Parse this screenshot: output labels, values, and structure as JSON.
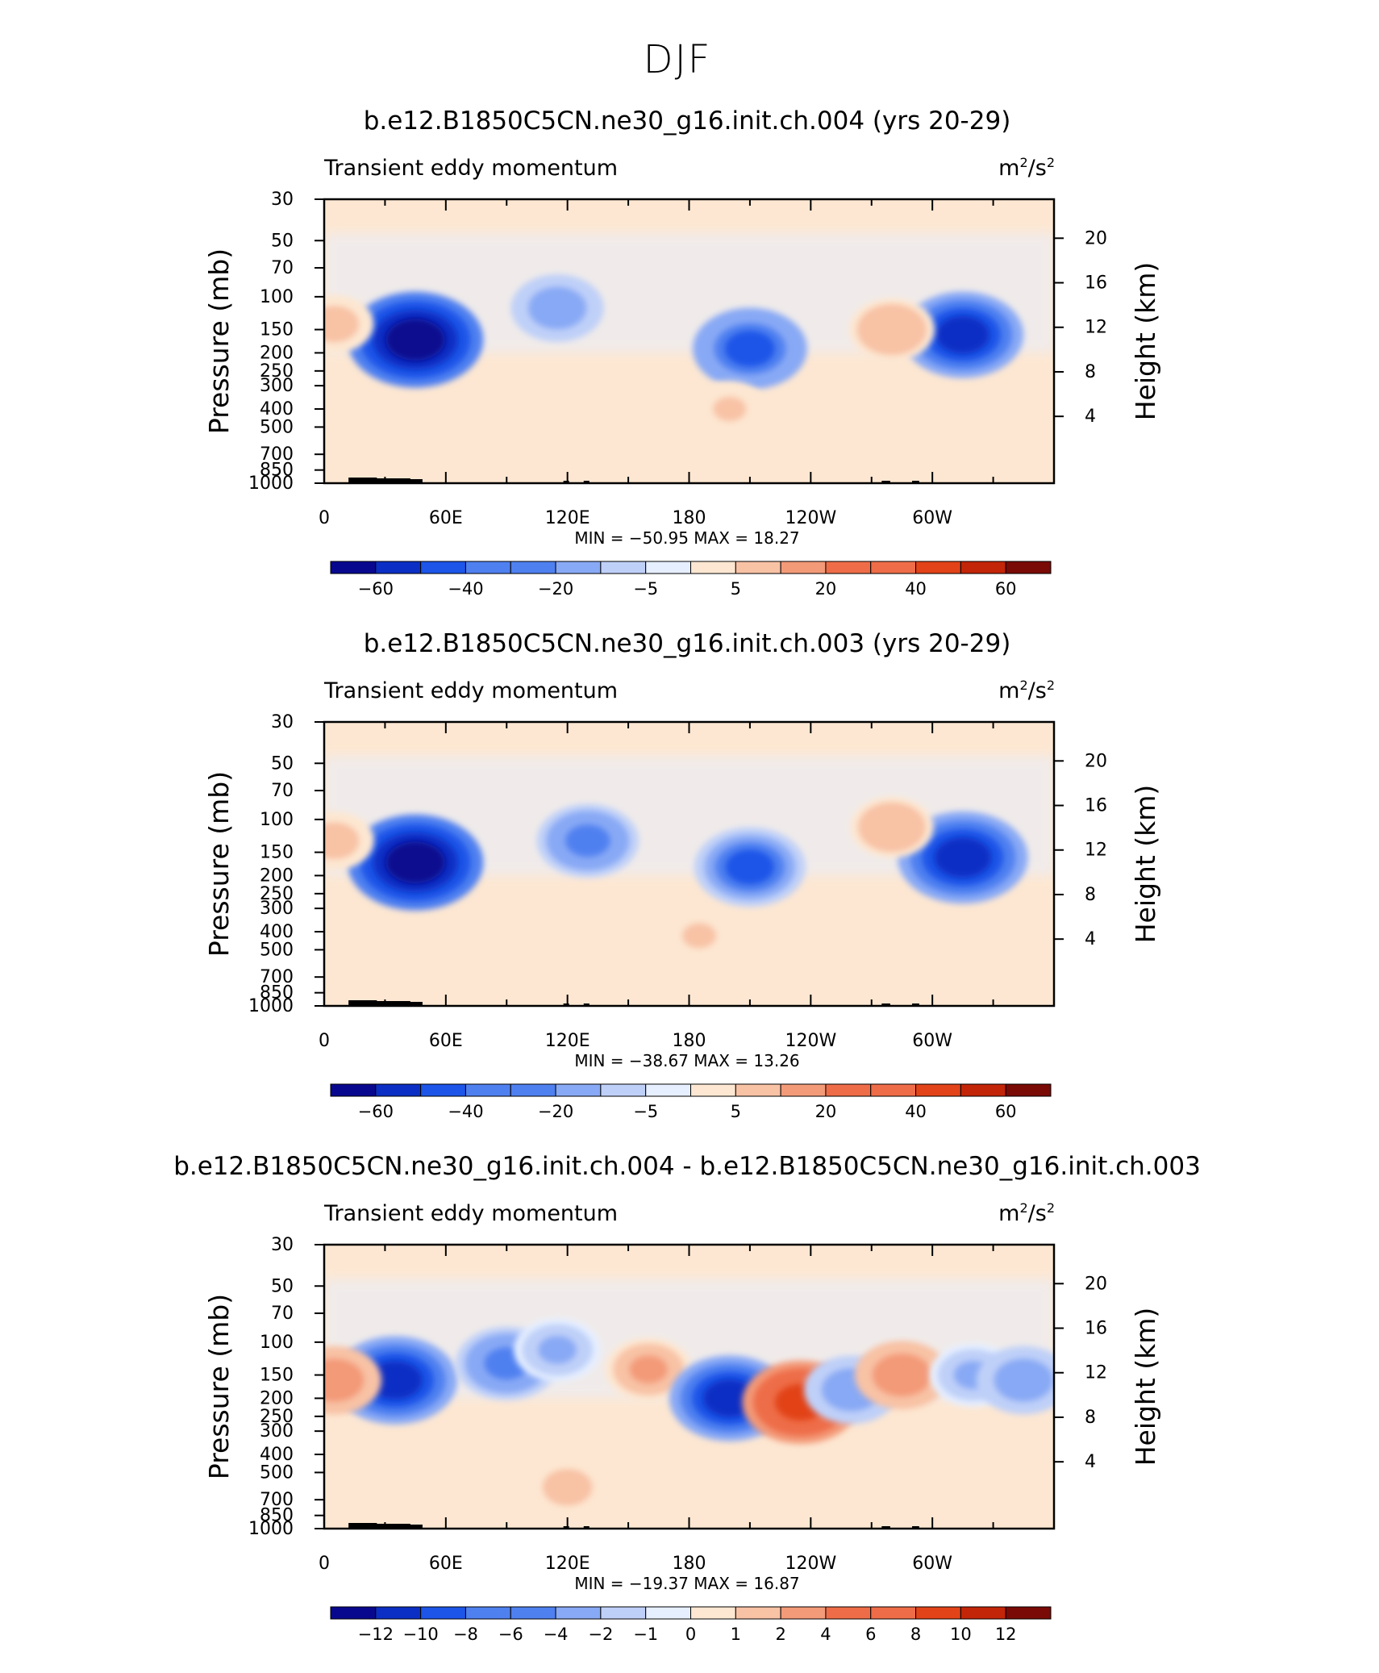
{
  "figure_title": "DJF",
  "colors": {
    "standard_palette": [
      "#08088f",
      "#0b2fc4",
      "#1c55e8",
      "#4f80f0",
      "#88a9f5",
      "#bfd0f8",
      "#e6efff",
      "#fde7d2",
      "#f8c2a5",
      "#f39a78",
      "#ee6d48",
      "#e24318",
      "#c32508",
      "#7a0a05"
    ],
    "frame": "#000000"
  },
  "chart_data": [
    {
      "type": "heatmap",
      "title": "b.e12.B1850C5CN.ne30_g16.init.ch.004 (yrs 20-29)",
      "subtitle_left": "Transient eddy momentum",
      "units_base": "m",
      "units_exp1": "2",
      "units_mid": "/s",
      "units_exp2": "2",
      "ylabel": "Pressure  (mb)",
      "ylabel_right": "Height  (km)",
      "y_ticks": [
        "30",
        "50",
        "70",
        "100",
        "150",
        "200",
        "250",
        "300",
        "400",
        "500",
        "700",
        "850",
        "1000"
      ],
      "y_tick_values": [
        30,
        50,
        70,
        100,
        150,
        200,
        250,
        300,
        400,
        500,
        700,
        850,
        1000
      ],
      "y_right_ticks": [
        "20",
        "16",
        "12",
        "8",
        "4"
      ],
      "y_right_values": [
        20,
        16,
        12,
        8,
        4
      ],
      "x_ticks": [
        "0",
        "60E",
        "120E",
        "180",
        "120W",
        "60W"
      ],
      "x_tick_values": [
        0,
        60,
        120,
        180,
        240,
        300
      ],
      "xlim": [
        0,
        360
      ],
      "ylim": [
        1000,
        30
      ],
      "min_max_text": "MIN = −50.95   MAX =   18.27",
      "min": -50.95,
      "max": 18.27,
      "colorbar_labels": [
        "−60",
        "−40",
        "−20",
        "−5",
        "5",
        "20",
        "40",
        "60"
      ],
      "features": [
        {
          "lon": 45,
          "p": 170,
          "value": -50
        },
        {
          "lon": 115,
          "p": 115,
          "value": -20
        },
        {
          "lon": 210,
          "p": 190,
          "value": -35
        },
        {
          "lon": 315,
          "p": 160,
          "value": -40
        },
        {
          "lon": 280,
          "p": 150,
          "value": 15
        },
        {
          "lon": 5,
          "p": 140,
          "value": 10
        },
        {
          "lon": 200,
          "p": 400,
          "value": 8
        }
      ]
    },
    {
      "type": "heatmap",
      "title": "b.e12.B1850C5CN.ne30_g16.init.ch.003 (yrs 20-29)",
      "subtitle_left": "Transient eddy momentum",
      "units_base": "m",
      "units_exp1": "2",
      "units_mid": "/s",
      "units_exp2": "2",
      "ylabel": "Pressure  (mb)",
      "ylabel_right": "Height  (km)",
      "y_ticks": [
        "30",
        "50",
        "70",
        "100",
        "150",
        "200",
        "250",
        "300",
        "400",
        "500",
        "700",
        "850",
        "1000"
      ],
      "y_tick_values": [
        30,
        50,
        70,
        100,
        150,
        200,
        250,
        300,
        400,
        500,
        700,
        850,
        1000
      ],
      "y_right_ticks": [
        "20",
        "16",
        "12",
        "8",
        "4"
      ],
      "y_right_values": [
        20,
        16,
        12,
        8,
        4
      ],
      "x_ticks": [
        "0",
        "60E",
        "120E",
        "180",
        "120W",
        "60W"
      ],
      "x_tick_values": [
        0,
        60,
        120,
        180,
        240,
        300
      ],
      "xlim": [
        0,
        360
      ],
      "ylim": [
        1000,
        30
      ],
      "min_max_text": "MIN = −38.67   MAX =   13.26",
      "min": -38.67,
      "max": 13.26,
      "colorbar_labels": [
        "−60",
        "−40",
        "−20",
        "−5",
        "5",
        "20",
        "40",
        "60"
      ],
      "features": [
        {
          "lon": 45,
          "p": 170,
          "value": -38
        },
        {
          "lon": 130,
          "p": 130,
          "value": -20
        },
        {
          "lon": 210,
          "p": 180,
          "value": -25
        },
        {
          "lon": 315,
          "p": 160,
          "value": -35
        },
        {
          "lon": 280,
          "p": 110,
          "value": 10
        },
        {
          "lon": 5,
          "p": 130,
          "value": 8
        },
        {
          "lon": 185,
          "p": 420,
          "value": 7
        }
      ]
    },
    {
      "type": "heatmap",
      "title": "b.e12.B1850C5CN.ne30_g16.init.ch.004 - b.e12.B1850C5CN.ne30_g16.init.ch.003",
      "subtitle_left": "Transient eddy momentum",
      "units_base": "m",
      "units_exp1": "2",
      "units_mid": "/s",
      "units_exp2": "2",
      "ylabel": "Pressure  (mb)",
      "ylabel_right": "Height  (km)",
      "y_ticks": [
        "30",
        "50",
        "70",
        "100",
        "150",
        "200",
        "250",
        "300",
        "400",
        "500",
        "700",
        "850",
        "1000"
      ],
      "y_tick_values": [
        30,
        50,
        70,
        100,
        150,
        200,
        250,
        300,
        400,
        500,
        700,
        850,
        1000
      ],
      "y_right_ticks": [
        "20",
        "16",
        "12",
        "8",
        "4"
      ],
      "y_right_values": [
        20,
        16,
        12,
        8,
        4
      ],
      "x_ticks": [
        "0",
        "60E",
        "120E",
        "180",
        "120W",
        "60W"
      ],
      "x_tick_values": [
        0,
        60,
        120,
        180,
        240,
        300
      ],
      "xlim": [
        0,
        360
      ],
      "ylim": [
        1000,
        30
      ],
      "min_max_text": "MIN = −19.37   MAX =   16.87",
      "min": -19.37,
      "max": 16.87,
      "colorbar_labels": [
        "−12",
        "−10",
        "−8",
        "−6",
        "−4",
        "−2",
        "−1",
        "0",
        "1",
        "2",
        "4",
        "6",
        "8",
        "10",
        "12"
      ],
      "features": [
        {
          "lon": 35,
          "p": 160,
          "value": -16
        },
        {
          "lon": 90,
          "p": 130,
          "value": -10
        },
        {
          "lon": 115,
          "p": 110,
          "value": -6
        },
        {
          "lon": 160,
          "p": 140,
          "value": 6
        },
        {
          "lon": 200,
          "p": 200,
          "value": -15
        },
        {
          "lon": 235,
          "p": 210,
          "value": 14
        },
        {
          "lon": 260,
          "p": 180,
          "value": -8
        },
        {
          "lon": 285,
          "p": 150,
          "value": 8
        },
        {
          "lon": 320,
          "p": 150,
          "value": -6
        },
        {
          "lon": 345,
          "p": 160,
          "value": -8
        },
        {
          "lon": 5,
          "p": 160,
          "value": 8
        },
        {
          "lon": 120,
          "p": 600,
          "value": 4
        }
      ]
    }
  ]
}
